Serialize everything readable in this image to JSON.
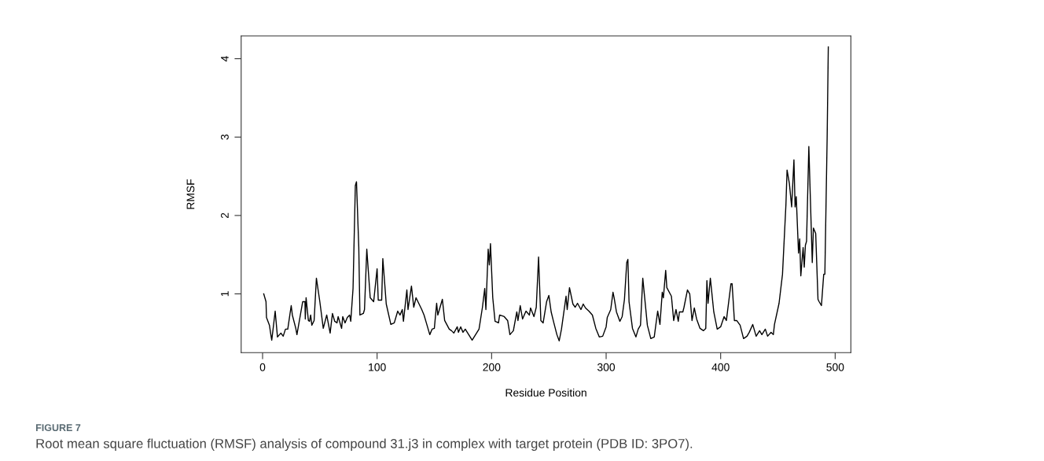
{
  "chart_data": {
    "type": "line",
    "xlabel": "Residue Position",
    "ylabel": "RMSF",
    "annotations": [
      "FIGURE 7",
      "Root mean square fluctuation (RMSF) analysis of compound 31.j3 in complex with target protein (PDB ID: 3PO7)."
    ],
    "xlim": [
      -18.7,
      513.7
    ],
    "ylim": [
      0.25,
      4.29
    ],
    "xticks": [
      0,
      100,
      200,
      300,
      400,
      500
    ],
    "yticks": [
      1,
      2,
      3,
      4
    ],
    "grid": false,
    "marker": "none",
    "line_style": "solid",
    "series": [
      {
        "color": "#000000",
        "x": [
          1,
          3,
          3.4,
          6,
          7,
          8,
          9,
          11,
          13,
          16,
          18,
          20,
          22,
          24,
          25,
          26,
          29,
          30,
          33,
          35,
          37,
          37.3,
          38,
          40,
          41,
          42,
          43,
          45,
          47,
          50,
          53,
          56,
          59,
          61,
          63,
          65,
          66,
          69,
          70,
          72,
          74,
          76,
          77,
          79,
          81,
          82,
          84,
          85,
          88,
          89,
          91,
          94,
          97,
          100,
          101,
          104,
          105,
          108,
          112,
          115,
          118,
          120,
          122,
          123,
          126,
          127,
          130,
          132,
          134,
          139,
          141,
          143,
          146,
          148,
          150,
          152,
          153,
          155,
          157,
          159,
          163,
          165,
          167,
          170,
          171,
          173,
          175,
          177,
          180,
          183,
          186,
          189,
          192,
          194,
          195,
          197,
          198,
          199,
          201,
          203,
          206,
          207,
          211,
          214,
          216,
          219,
          222,
          223,
          225,
          227,
          230,
          233,
          234,
          237,
          239,
          241,
          243,
          245,
          248,
          250,
          252,
          254,
          257,
          259,
          261,
          265,
          266,
          268,
          271,
          273,
          275,
          278,
          280,
          282,
          285,
          288,
          291,
          294,
          297,
          300,
          301,
          304,
          306,
          307,
          309,
          312,
          314,
          316,
          318,
          319,
          320,
          323,
          326,
          328,
          330,
          332,
          336,
          339,
          342,
          345,
          347,
          349,
          350,
          352,
          353,
          357,
          359,
          361,
          363,
          364,
          367,
          368,
          371,
          373,
          375,
          377,
          379,
          382,
          385,
          387,
          388,
          389,
          391,
          394,
          397,
          400,
          403,
          405,
          409,
          410,
          412,
          414,
          417,
          420,
          423,
          425,
          428,
          431,
          434,
          436,
          439,
          441,
          444,
          446,
          447,
          451,
          454,
          457,
          458,
          460,
          462,
          464,
          465,
          466,
          468,
          469,
          470,
          472,
          473,
          474,
          475,
          477,
          480,
          481,
          483,
          485,
          486,
          488,
          490,
          491,
          493,
          494
        ],
        "values": [
          1.0,
          0.9,
          0.7,
          0.6,
          0.5,
          0.41,
          0.53,
          0.78,
          0.45,
          0.5,
          0.46,
          0.55,
          0.55,
          0.75,
          0.85,
          0.73,
          0.56,
          0.48,
          0.73,
          0.9,
          0.9,
          0.68,
          0.95,
          0.66,
          0.65,
          0.73,
          0.6,
          0.66,
          1.2,
          0.9,
          0.56,
          0.73,
          0.5,
          0.75,
          0.65,
          0.63,
          0.71,
          0.56,
          0.71,
          0.63,
          0.7,
          0.73,
          0.65,
          1.07,
          2.38,
          2.43,
          1.6,
          0.73,
          0.75,
          0.8,
          1.57,
          0.95,
          0.9,
          1.32,
          0.92,
          0.92,
          1.45,
          0.87,
          0.61,
          0.63,
          0.78,
          0.73,
          0.8,
          0.65,
          1.05,
          0.8,
          1.1,
          0.83,
          0.95,
          0.8,
          0.73,
          0.63,
          0.48,
          0.55,
          0.56,
          0.88,
          0.73,
          0.83,
          0.93,
          0.66,
          0.55,
          0.53,
          0.5,
          0.58,
          0.51,
          0.58,
          0.51,
          0.55,
          0.48,
          0.41,
          0.48,
          0.55,
          0.83,
          1.07,
          0.8,
          1.57,
          1.37,
          1.64,
          0.95,
          0.65,
          0.63,
          0.73,
          0.71,
          0.66,
          0.48,
          0.53,
          0.77,
          0.66,
          0.85,
          0.68,
          0.78,
          0.73,
          0.82,
          0.71,
          0.83,
          1.47,
          0.66,
          0.63,
          0.9,
          0.98,
          0.77,
          0.65,
          0.48,
          0.4,
          0.55,
          0.97,
          0.8,
          1.08,
          0.87,
          0.83,
          0.88,
          0.8,
          0.87,
          0.82,
          0.78,
          0.73,
          0.56,
          0.45,
          0.46,
          0.58,
          0.7,
          0.8,
          1.02,
          0.95,
          0.77,
          0.65,
          0.71,
          0.93,
          1.4,
          1.44,
          0.9,
          0.56,
          0.45,
          0.55,
          0.6,
          1.2,
          0.6,
          0.43,
          0.45,
          0.78,
          0.61,
          1.02,
          0.95,
          1.3,
          1.08,
          0.97,
          0.66,
          0.8,
          0.65,
          0.77,
          0.77,
          0.83,
          1.05,
          1.0,
          0.66,
          0.82,
          0.68,
          0.56,
          0.53,
          0.56,
          1.17,
          0.88,
          1.2,
          0.77,
          0.55,
          0.58,
          0.71,
          0.66,
          1.13,
          1.13,
          0.66,
          0.66,
          0.6,
          0.43,
          0.46,
          0.51,
          0.61,
          0.46,
          0.53,
          0.48,
          0.55,
          0.46,
          0.51,
          0.48,
          0.61,
          0.88,
          1.25,
          2.14,
          2.58,
          2.41,
          2.11,
          2.71,
          2.11,
          2.24,
          1.52,
          1.7,
          1.23,
          1.59,
          1.34,
          1.62,
          1.67,
          2.88,
          1.4,
          1.84,
          1.77,
          0.93,
          0.9,
          0.85,
          1.25,
          1.25,
          3.0,
          4.15
        ]
      }
    ]
  }
}
